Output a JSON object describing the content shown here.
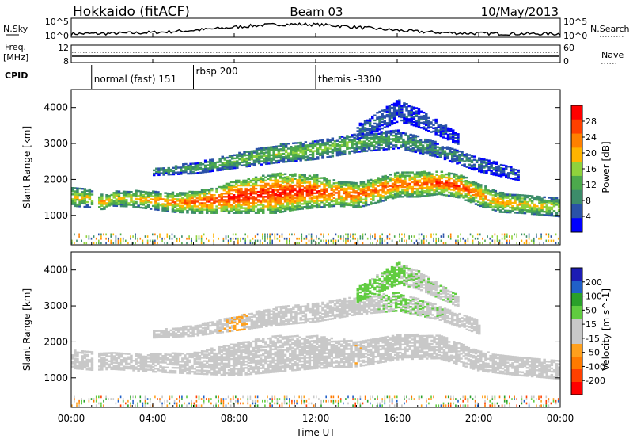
{
  "header": {
    "station": "Hokkaido (fitACF)",
    "beam": "Beam 03",
    "date": "10/May/2013"
  },
  "top_panels": {
    "nsky_label": "N.Sky",
    "nsearch_label": "N.Search",
    "noise_ticks": [
      "10^5",
      "10^0"
    ],
    "freq_label_1": "Freq.",
    "freq_label_2": "[MHz]",
    "freq_ticks": [
      "12",
      "8"
    ],
    "nave_label": "Nave",
    "nave_ticks": [
      "60",
      "0"
    ],
    "cpid_label": "CPID",
    "cpid_segments": [
      {
        "label": "normal (fast) 151",
        "start_hour": 1.0
      },
      {
        "label": "rbsp 200",
        "start_hour": 6.0
      },
      {
        "label": "themis -3300",
        "start_hour": 12.0
      }
    ]
  },
  "x_axis": {
    "label": "Time UT",
    "ticks": [
      "00:00",
      "04:00",
      "08:00",
      "12:00",
      "16:00",
      "20:00",
      "00:00"
    ]
  },
  "colors": {
    "power": [
      "#0000ff",
      "#2a52a8",
      "#3c8c6a",
      "#4ca94c",
      "#8fd23c",
      "#ffb400",
      "#ff8000",
      "#ff4000",
      "#ff0000"
    ],
    "velocity": [
      "#1c1cb4",
      "#2060c8",
      "#2aa02a",
      "#60cc40",
      "#c8c8c8",
      "#c8c8c8",
      "#ffa01c",
      "#ff7a00",
      "#ff4000",
      "#ff0000"
    ]
  },
  "chart_data": [
    {
      "type": "heatmap",
      "title": "Power",
      "xlabel": "Time UT",
      "ylabel": "Slant Range [km]",
      "xlim": [
        0,
        24
      ],
      "ylim": [
        180,
        4500
      ],
      "yticks": [
        "1000",
        "2000",
        "3000",
        "4000"
      ],
      "colorbar": {
        "label": "Power [dB]",
        "ticks": [
          "4",
          "8",
          "12",
          "16",
          "20",
          "24",
          "28"
        ],
        "range": [
          0,
          32
        ]
      },
      "bands": [
        {
          "name": "main",
          "x": [
            0.0,
            1.0,
            1.5,
            2,
            3,
            4,
            5,
            6,
            7,
            8,
            9,
            10,
            11,
            12,
            13,
            14,
            15,
            16,
            17,
            18,
            19,
            20,
            21,
            22,
            23,
            24
          ],
          "center": [
            1500,
            1450,
            1350,
            1450,
            1450,
            1400,
            1350,
            1350,
            1400,
            1500,
            1550,
            1600,
            1650,
            1650,
            1600,
            1550,
            1700,
            1850,
            1850,
            1900,
            1800,
            1550,
            1350,
            1300,
            1250,
            1200
          ],
          "thickness": [
            500,
            500,
            400,
            400,
            450,
            500,
            550,
            600,
            700,
            900,
            1000,
            1100,
            1000,
            900,
            700,
            700,
            700,
            700,
            700,
            650,
            650,
            600,
            550,
            500,
            500,
            500
          ],
          "peak": [
            20,
            18,
            22,
            20,
            20,
            22,
            24,
            26,
            28,
            30,
            30,
            30,
            30,
            28,
            26,
            26,
            26,
            26,
            26,
            28,
            28,
            24,
            22,
            20,
            20,
            18
          ]
        },
        {
          "name": "upper",
          "x": [
            4,
            6,
            8,
            10,
            12,
            14,
            16,
            18,
            20,
            22
          ],
          "center": [
            2200,
            2300,
            2500,
            2700,
            2800,
            3000,
            3100,
            2800,
            2400,
            2100
          ],
          "thickness": [
            200,
            300,
            400,
            500,
            500,
            500,
            500,
            400,
            400,
            300
          ],
          "peak": [
            10,
            12,
            14,
            16,
            16,
            14,
            12,
            10,
            8,
            6
          ]
        },
        {
          "name": "far",
          "x": [
            14,
            15,
            16,
            17,
            18,
            19
          ],
          "center": [
            3300,
            3600,
            3900,
            3700,
            3400,
            3100
          ],
          "thickness": [
            400,
            500,
            600,
            500,
            400,
            300
          ],
          "peak": [
            8,
            8,
            6,
            6,
            6,
            6
          ]
        }
      ]
    },
    {
      "type": "heatmap",
      "title": "Velocity",
      "xlabel": "Time UT",
      "ylabel": "Slant Range [km]",
      "xlim": [
        0,
        24
      ],
      "ylim": [
        180,
        4500
      ],
      "yticks": [
        "1000",
        "2000",
        "3000",
        "4000"
      ],
      "colorbar": {
        "label": "Velocity [m s^-1]",
        "ticks": [
          "200",
          "100",
          "50",
          "15",
          "-15",
          "-50",
          "-100",
          "-200"
        ],
        "range": [
          -250,
          250
        ]
      },
      "bands": [
        {
          "name": "main",
          "x": [
            0,
            1,
            2,
            4,
            6,
            8,
            10,
            12,
            14,
            16,
            18,
            20,
            22,
            24
          ],
          "center": [
            1500,
            1450,
            1450,
            1400,
            1400,
            1500,
            1650,
            1700,
            1650,
            1850,
            1850,
            1450,
            1300,
            1200
          ],
          "thickness": [
            500,
            500,
            450,
            500,
            600,
            900,
            1000,
            900,
            700,
            700,
            650,
            550,
            500,
            500
          ],
          "velocity": [
            0,
            0,
            0,
            0,
            0,
            -20,
            0,
            0,
            -40,
            0,
            0,
            0,
            0,
            0
          ]
        },
        {
          "name": "upper",
          "x": [
            4,
            6,
            8,
            10,
            12,
            14,
            16,
            18,
            20
          ],
          "center": [
            2200,
            2300,
            2500,
            2700,
            2800,
            3000,
            3100,
            2800,
            2400
          ],
          "thickness": [
            200,
            300,
            400,
            500,
            500,
            500,
            500,
            400,
            400
          ],
          "velocity": [
            0,
            0,
            -60,
            0,
            0,
            20,
            60,
            40,
            20
          ]
        },
        {
          "name": "far",
          "x": [
            14,
            15,
            16,
            17,
            18,
            19
          ],
          "center": [
            3300,
            3600,
            3900,
            3700,
            3400,
            3100
          ],
          "thickness": [
            400,
            500,
            600,
            500,
            400,
            300
          ],
          "velocity": [
            60,
            60,
            60,
            40,
            40,
            40
          ]
        }
      ]
    }
  ]
}
